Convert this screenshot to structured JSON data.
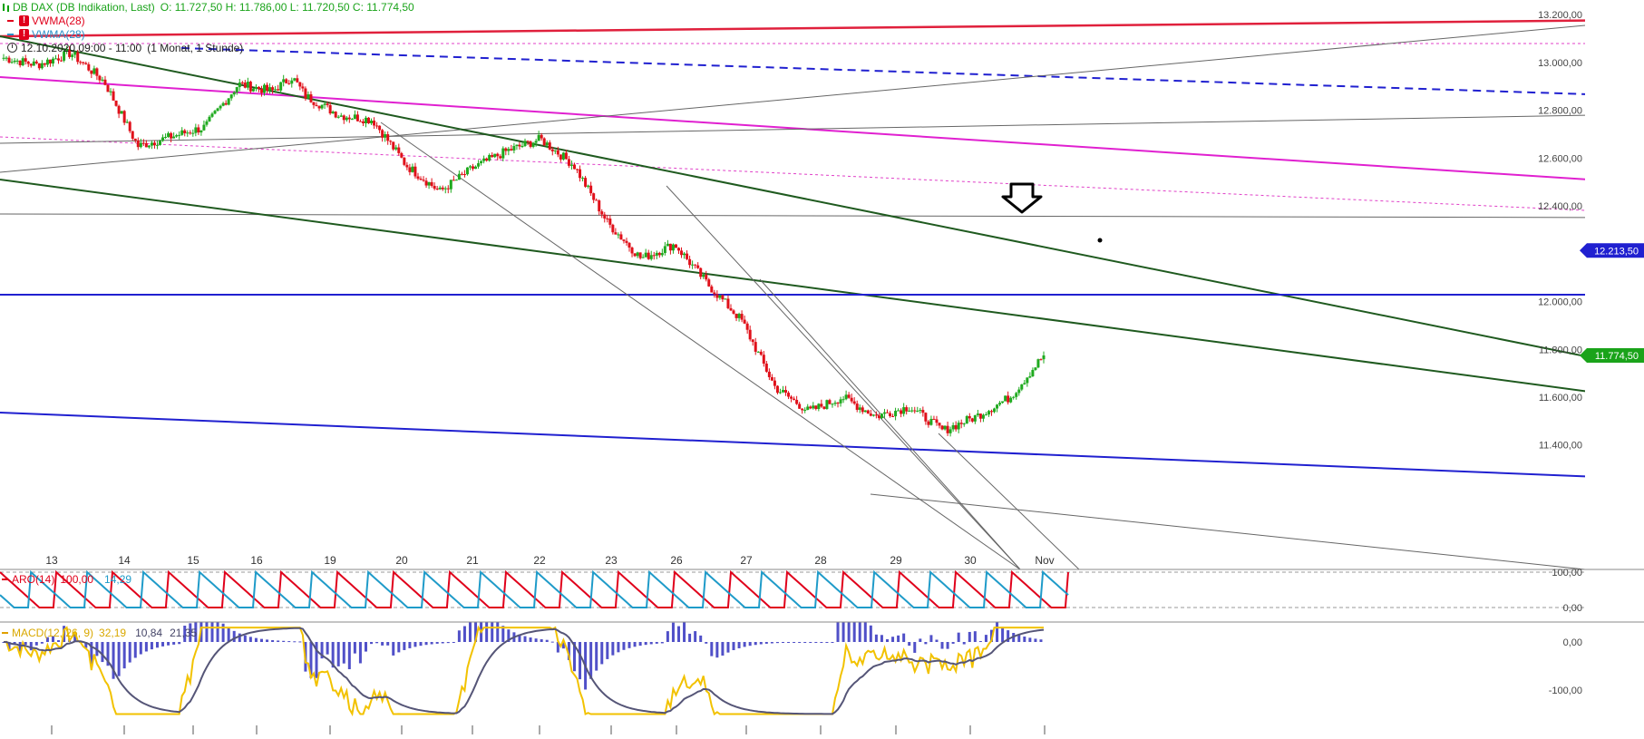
{
  "header": {
    "instrument": "DB DAX (DB Indikation, Last)",
    "ohlc": "O: 11.727,50  H: 11.786,00  L: 11.720,50  C: 11.774,50",
    "indicators": [
      {
        "label": "VWMA(28)",
        "color": "#e0001b"
      },
      {
        "label": "VWMA(28)",
        "color": "#2a8fc8"
      }
    ],
    "period": "12.10.2020 09:00 - 11:00",
    "timeframe": "(1 Monat, 1 Stunde)"
  },
  "chart_data": [
    {
      "type": "candlestick",
      "title": "DB DAX (DB Indikation, Last)",
      "x_tick_labels": [
        "13",
        "14",
        "15",
        "16",
        "19",
        "20",
        "21",
        "22",
        "23",
        "26",
        "27",
        "28",
        "29",
        "30",
        "Nov"
      ],
      "y_tick_labels": [
        "13.200,00",
        "13.000,00",
        "12.800,00",
        "12.600,00",
        "12.400,00",
        "12.000,00",
        "11.800,00",
        "11.600,00",
        "11.400,00"
      ],
      "ylim": [
        11220,
        13280
      ],
      "markers": [
        {
          "label": "12.213,50",
          "value": 12213.5,
          "color": "#2020d0"
        },
        {
          "label": "11.774,50",
          "value": 11774.5,
          "color": "#1aa31a"
        }
      ],
      "ohlc_last": {
        "open": 11727.5,
        "high": 11786.0,
        "low": 11720.5,
        "close": 11774.5
      },
      "close_series": [
        {
          "x": 0,
          "close": 13020
        },
        {
          "x": 1,
          "close": 12990
        },
        {
          "x": 2,
          "close": 13040
        },
        {
          "x": 3,
          "close": 12920
        },
        {
          "x": 4,
          "close": 12650
        },
        {
          "x": 5,
          "close": 12690
        },
        {
          "x": 6,
          "close": 12730
        },
        {
          "x": 7,
          "close": 12910
        },
        {
          "x": 8,
          "close": 12880
        },
        {
          "x": 8.6,
          "close": 12940
        },
        {
          "x": 9,
          "close": 12860
        },
        {
          "x": 10,
          "close": 12780
        },
        {
          "x": 11,
          "close": 12760
        },
        {
          "x": 12,
          "close": 12570
        },
        {
          "x": 13,
          "close": 12460
        },
        {
          "x": 14,
          "close": 12560
        },
        {
          "x": 15,
          "close": 12630
        },
        {
          "x": 16,
          "close": 12680
        },
        {
          "x": 17,
          "close": 12570
        },
        {
          "x": 18,
          "close": 12330
        },
        {
          "x": 19,
          "close": 12180
        },
        {
          "x": 20,
          "close": 12240
        },
        {
          "x": 21,
          "close": 12070
        },
        {
          "x": 22,
          "close": 11920
        },
        {
          "x": 23,
          "close": 11640
        },
        {
          "x": 24,
          "close": 11540
        },
        {
          "x": 25,
          "close": 11600
        },
        {
          "x": 26,
          "close": 11520
        },
        {
          "x": 27,
          "close": 11560
        },
        {
          "x": 28,
          "close": 11460
        },
        {
          "x": 29,
          "close": 11520
        },
        {
          "x": 30,
          "close": 11600
        },
        {
          "x": 31,
          "close": 11774.5
        }
      ]
    },
    {
      "type": "line",
      "title": "ARO(14)",
      "series": [
        {
          "name": "Aroon Up",
          "value_label": "100,00",
          "color": "#e0001b"
        },
        {
          "name": "Aroon Down",
          "value_label": "14,29",
          "color": "#1f9bc9"
        }
      ],
      "y_tick_labels": [
        "100,00",
        "0,00"
      ],
      "ylim": [
        0,
        100
      ]
    },
    {
      "type": "line",
      "title": "MACD(12, 26, 9)",
      "value_labels": [
        "32,19",
        "10,84",
        "21,35"
      ],
      "series": [
        {
          "name": "MACD",
          "color": "#f2c200"
        },
        {
          "name": "Signal",
          "color": "#555577"
        },
        {
          "name": "Histogram",
          "color": "#5050c8"
        }
      ],
      "y_tick_labels": [
        "0,00",
        "-100,00"
      ],
      "ylim": [
        -170,
        30
      ]
    }
  ]
}
